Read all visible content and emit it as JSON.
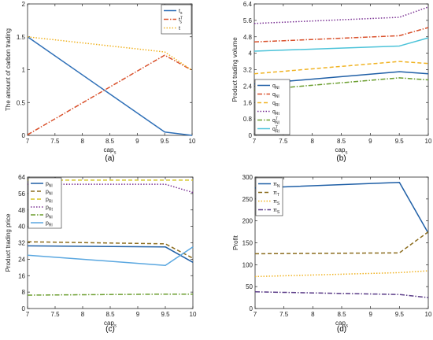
{
  "chart_data": [
    {
      "panel": "a",
      "label": "(a)",
      "type": "line",
      "xlabel": "cap_s",
      "ylabel": "The amount of carbon trading",
      "xlim": [
        7,
        10
      ],
      "ylim": [
        0,
        2
      ],
      "xticks": [
        "7",
        "7.5",
        "8",
        "8.5",
        "9",
        "9.5",
        "10"
      ],
      "yticks": [
        "0",
        "0.5",
        "1",
        "1.5",
        "2"
      ],
      "ytick_values": [
        0,
        0.5,
        1,
        1.5,
        2
      ],
      "legend_position": "top-right",
      "series": [
        {
          "name": "t_s",
          "color": "#2e6fb7",
          "dash": "solid",
          "x": [
            7,
            9.5,
            10
          ],
          "y": [
            1.5,
            0.05,
            0
          ]
        },
        {
          "name": "t_s^T",
          "color": "#d9512c",
          "dash": "dashdot",
          "x": [
            7,
            9.5,
            10
          ],
          "y": [
            0.01,
            1.22,
            0.99
          ]
        },
        {
          "name": "t",
          "color": "#f0b323",
          "dash": "dotted",
          "x": [
            7,
            9.5,
            10
          ],
          "y": [
            1.5,
            1.27,
            0.99
          ]
        }
      ]
    },
    {
      "panel": "b",
      "label": "(b)",
      "type": "line",
      "xlabel": "cap_s",
      "ylabel": "Product trading volume",
      "xlim": [
        7,
        10
      ],
      "ylim": [
        0,
        6.4
      ],
      "xticks": [
        "7",
        "7.5",
        "8",
        "8.5",
        "9",
        "9.5",
        "10"
      ],
      "yticks": [
        "0",
        "0.8",
        "1.6",
        "2.4",
        "3.2",
        "4",
        "4.8",
        "5.6",
        "6.4"
      ],
      "ytick_values": [
        0,
        0.8,
        1.6,
        2.4,
        3.2,
        4,
        4.8,
        5.6,
        6.4
      ],
      "legend_position": "bottom-left",
      "series": [
        {
          "name": "q_Nl",
          "color": "#1f5fa6",
          "dash": "solid",
          "x": [
            7,
            9.5,
            10
          ],
          "y": [
            2.5,
            3.1,
            3.0
          ]
        },
        {
          "name": "q_Nl",
          "color": "#d9512c",
          "dash": "dashdot",
          "x": [
            7,
            9.5,
            10
          ],
          "y": [
            4.55,
            4.85,
            5.25
          ]
        },
        {
          "name": "q_Rl",
          "color": "#f0b323",
          "dash": "dashed",
          "x": [
            7,
            9.5,
            10
          ],
          "y": [
            3.0,
            3.6,
            3.5
          ]
        },
        {
          "name": "q_Rt",
          "color": "#7b3294",
          "dash": "dotted",
          "x": [
            7,
            9.5,
            10
          ],
          "y": [
            5.45,
            5.75,
            6.25
          ]
        },
        {
          "name": "q_Nl^T",
          "color": "#6b9e2f",
          "dash": "dashdot",
          "x": [
            7,
            9.5,
            10
          ],
          "y": [
            2.2,
            2.8,
            2.7
          ]
        },
        {
          "name": "q_Rl^T",
          "color": "#4cc3d9",
          "dash": "solid",
          "x": [
            7,
            9.5,
            10
          ],
          "y": [
            4.1,
            4.35,
            4.75
          ]
        }
      ]
    },
    {
      "panel": "c",
      "label": "(c)",
      "type": "line",
      "xlabel": "cap_s",
      "ylabel": "Product trading price",
      "xlim": [
        7,
        10
      ],
      "ylim": [
        0,
        64
      ],
      "xticks": [
        "7",
        "7.5",
        "8",
        "8.5",
        "9",
        "9.5",
        "10"
      ],
      "yticks": [
        "0",
        "8",
        "16",
        "24",
        "32",
        "40",
        "48",
        "56",
        "64"
      ],
      "ytick_values": [
        0,
        8,
        16,
        24,
        32,
        40,
        48,
        56,
        64
      ],
      "legend_position": "top-left",
      "series": [
        {
          "name": "p_Nl",
          "color": "#1f5fa6",
          "dash": "solid",
          "x": [
            7,
            9.5,
            10
          ],
          "y": [
            30.5,
            30.0,
            22.5
          ]
        },
        {
          "name": "p_Nl",
          "color": "#8c6d1f",
          "dash": "dashed",
          "x": [
            7,
            9.5,
            10
          ],
          "y": [
            32.5,
            31.5,
            24.5
          ]
        },
        {
          "name": "p_Rl",
          "color": "#d4c424",
          "dash": "dashed",
          "x": [
            7,
            9.5,
            10
          ],
          "y": [
            62.5,
            62.5,
            62.5
          ]
        },
        {
          "name": "p_Rt",
          "color": "#7b3294",
          "dash": "dotted",
          "x": [
            7,
            9.5,
            10
          ],
          "y": [
            60.5,
            60.5,
            56.5
          ]
        },
        {
          "name": "p_Nl",
          "color": "#6b9e2f",
          "dash": "dashdot",
          "x": [
            7,
            9.5,
            10
          ],
          "y": [
            6.5,
            7.0,
            7.0
          ]
        },
        {
          "name": "p_Rl",
          "color": "#5aa7e0",
          "dash": "solid",
          "x": [
            7,
            9.5,
            10
          ],
          "y": [
            26.0,
            21.0,
            30.0
          ]
        }
      ]
    },
    {
      "panel": "d",
      "label": "(d)",
      "type": "line",
      "xlabel": "cap_s",
      "ylabel": "Profit",
      "xlim": [
        7,
        10
      ],
      "ylim": [
        0,
        300
      ],
      "xticks": [
        "7",
        "7.5",
        "8",
        "8.5",
        "9",
        "9.5",
        "10"
      ],
      "yticks": [
        "0",
        "50",
        "100",
        "150",
        "200",
        "250",
        "300"
      ],
      "ytick_values": [
        0,
        50,
        100,
        150,
        200,
        250,
        300
      ],
      "legend_position": "top-left",
      "series": [
        {
          "name": "π_N",
          "color": "#1f5fa6",
          "dash": "solid",
          "x": [
            7,
            9.5,
            10
          ],
          "y": [
            275,
            288,
            172
          ]
        },
        {
          "name": "π_T",
          "color": "#8c6d1f",
          "dash": "dashed",
          "x": [
            7,
            9.5,
            10
          ],
          "y": [
            125,
            127,
            175
          ]
        },
        {
          "name": "π_S",
          "color": "#f0b323",
          "dash": "dotted",
          "x": [
            7,
            9.5,
            10
          ],
          "y": [
            73,
            82,
            86
          ]
        },
        {
          "name": "π_S",
          "color": "#5b3c88",
          "dash": "dashdot",
          "x": [
            7,
            9.5,
            10
          ],
          "y": [
            38,
            32,
            25
          ]
        }
      ]
    }
  ]
}
